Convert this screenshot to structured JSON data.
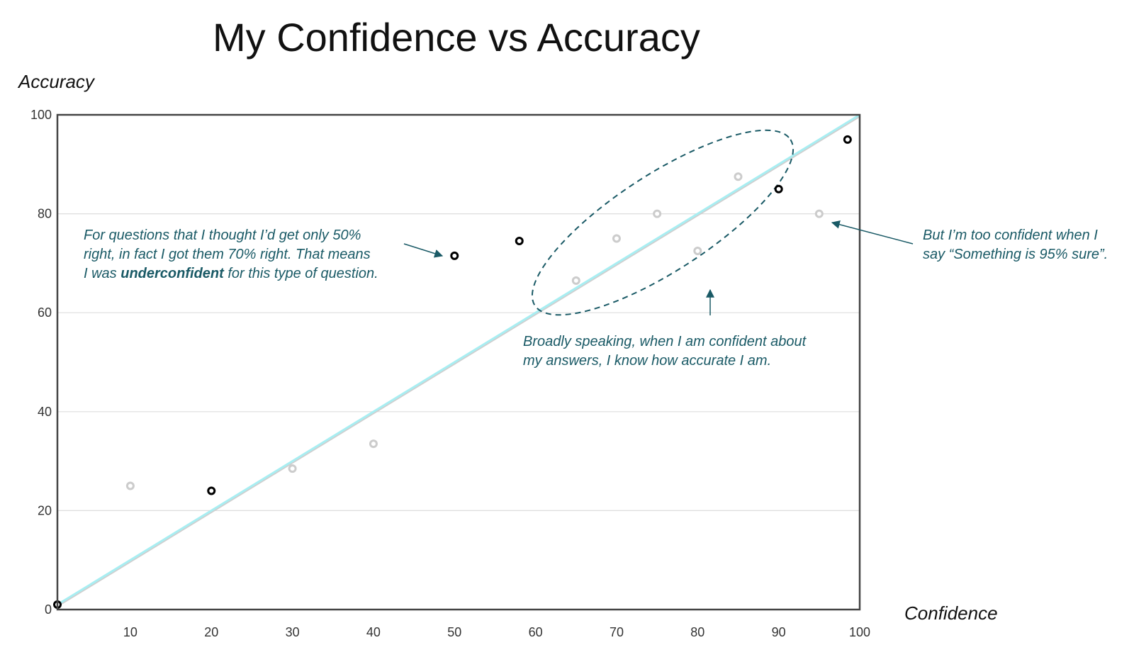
{
  "chart_data": {
    "type": "scatter",
    "title": "My Confidence vs Accuracy",
    "xlabel": "Confidence",
    "ylabel": "Accuracy",
    "xlim": [
      1,
      100
    ],
    "ylim": [
      0,
      100
    ],
    "x_ticks": [
      10,
      20,
      30,
      40,
      50,
      60,
      70,
      80,
      90,
      100
    ],
    "y_ticks": [
      0,
      20,
      40,
      60,
      80,
      100
    ],
    "grid": true,
    "reference_line": {
      "from": [
        1,
        1
      ],
      "to": [
        100,
        100
      ],
      "color": "#a8eef2"
    },
    "series": [
      {
        "color": "#000000",
        "points": [
          {
            "x": 1,
            "y": 1
          },
          {
            "x": 20,
            "y": 24
          },
          {
            "x": 50,
            "y": 71.5
          },
          {
            "x": 58,
            "y": 74.5
          },
          {
            "x": 90,
            "y": 85
          },
          {
            "x": 98.5,
            "y": 95
          }
        ]
      },
      {
        "color": "#cccccc",
        "points": [
          {
            "x": 10,
            "y": 25
          },
          {
            "x": 30,
            "y": 28.5
          },
          {
            "x": 40,
            "y": 33.5
          },
          {
            "x": 65,
            "y": 66.5
          },
          {
            "x": 70,
            "y": 75
          },
          {
            "x": 75,
            "y": 80
          },
          {
            "x": 80,
            "y": 72.5
          },
          {
            "x": 85,
            "y": 87.5
          },
          {
            "x": 95,
            "y": 80
          }
        ]
      }
    ],
    "annotations": {
      "underconfident": {
        "line1": "For questions that I thought I’d get only 50%",
        "line2": "right, in fact I got them 70% right. That means",
        "line3_before": "I was ",
        "line3_strong": "underconfident",
        "line3_after": " for this type of question."
      },
      "calibrated": {
        "line1": "Broadly speaking, when I am confident about",
        "line2": "my answers, I know how accurate I am."
      },
      "overconfident": {
        "line1": "But I’m too confident when I",
        "line2": "say “Something is 95% sure”."
      },
      "color": "#1a5a66"
    }
  }
}
